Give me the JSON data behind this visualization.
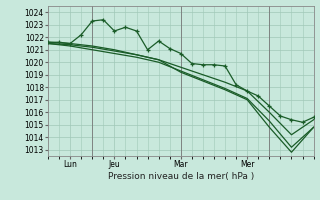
{
  "bg_color": "#c8e8dc",
  "grid_color": "#a0c8b8",
  "line_color": "#1a5c28",
  "xlabel": "Pression niveau de la mer( hPa )",
  "ylim": [
    1012.5,
    1024.5
  ],
  "yticks": [
    1013,
    1014,
    1015,
    1016,
    1017,
    1018,
    1019,
    1020,
    1021,
    1022,
    1023,
    1024
  ],
  "xlim": [
    0,
    48
  ],
  "xtick_positions": [
    4,
    12,
    24,
    36
  ],
  "xtick_labels": [
    "Lun",
    "Jeu",
    "Mar",
    "Mer"
  ],
  "vlines": [
    8,
    24,
    40
  ],
  "line1_x": [
    0,
    2,
    4,
    6,
    8,
    10,
    12,
    14,
    16,
    18,
    20,
    22,
    24,
    26,
    28,
    30,
    32,
    34,
    36,
    38,
    40,
    42,
    44,
    46,
    48
  ],
  "line1_y": [
    1021.6,
    1021.6,
    1021.5,
    1022.2,
    1023.3,
    1023.4,
    1022.5,
    1022.8,
    1022.5,
    1021.0,
    1021.7,
    1021.1,
    1020.7,
    1019.9,
    1019.8,
    1019.8,
    1019.7,
    1018.2,
    1017.7,
    1017.3,
    1016.5,
    1015.7,
    1015.4,
    1015.2,
    1015.6
  ],
  "line2_x": [
    0,
    4,
    8,
    12,
    16,
    20,
    24,
    28,
    32,
    36,
    40,
    44,
    48
  ],
  "line2_y": [
    1021.5,
    1021.4,
    1021.2,
    1020.9,
    1020.6,
    1020.2,
    1019.6,
    1019.0,
    1018.4,
    1017.7,
    1016.0,
    1014.2,
    1015.4
  ],
  "line3_x": [
    0,
    4,
    8,
    12,
    16,
    20,
    24,
    28,
    32,
    36,
    40,
    44,
    48
  ],
  "line3_y": [
    1021.5,
    1021.3,
    1021.0,
    1020.7,
    1020.4,
    1020.0,
    1019.3,
    1018.6,
    1017.9,
    1017.1,
    1015.3,
    1013.2,
    1014.8
  ],
  "line4_x": [
    0,
    4,
    8,
    12,
    16,
    20,
    24,
    28,
    32,
    36,
    40,
    44,
    48
  ],
  "line4_y": [
    1021.6,
    1021.5,
    1021.3,
    1021.0,
    1020.6,
    1020.2,
    1019.2,
    1018.5,
    1017.8,
    1017.0,
    1014.8,
    1012.8,
    1014.8
  ]
}
